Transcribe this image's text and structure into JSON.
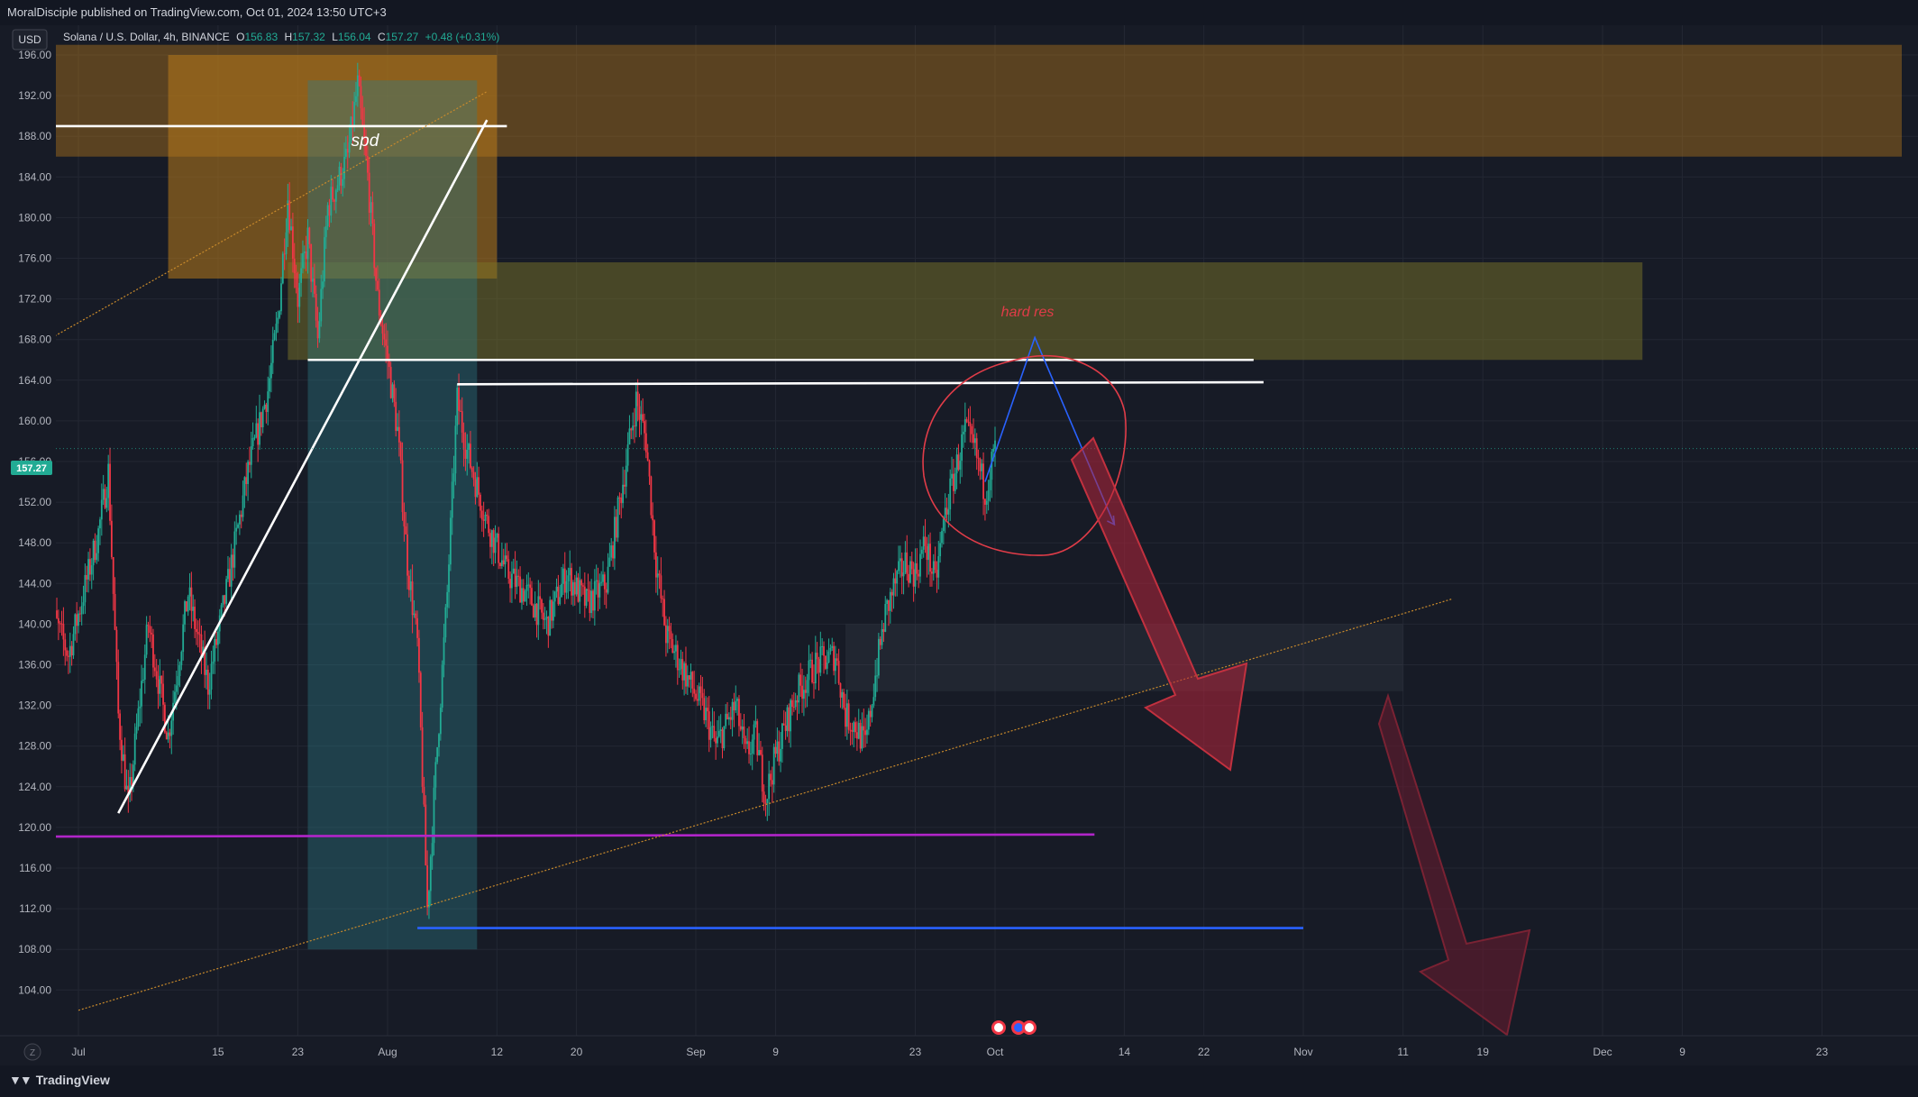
{
  "header": {
    "published": "MoralDisciple published on TradingView.com, Oct 01, 2024 13:50 UTC+3"
  },
  "legend": {
    "currency": "USD",
    "symbol": "Solana / U.S. Dollar, 4h, BINANCE",
    "o_label": "O",
    "o": "156.83",
    "h_label": "H",
    "h": "157.32",
    "l_label": "L",
    "l": "156.04",
    "c_label": "C",
    "c": "157.27",
    "change": "+0.48 (+0.31%)"
  },
  "price_badge": "157.27",
  "footer": {
    "logo_text": "TradingView",
    "z_label": "Z"
  },
  "colors": {
    "background": "#171b26",
    "grid": "#232733",
    "up": "#22ab94",
    "down": "#f23645",
    "badge": "#22ab94",
    "orange_zone": "#b87a1a",
    "olive_zone": "#7a7428",
    "teal_zone": "#2e7f8a",
    "purple_line": "#b125c9",
    "blue_line": "#2962ff",
    "red_arrow": "#c2313f"
  },
  "annotations": [
    {
      "text": "spd"
    },
    {
      "text": "hard res"
    }
  ],
  "chart_data": {
    "type": "candlestick",
    "ylim": [
      102,
      198
    ],
    "y_ticks": [
      "196.00",
      "192.00",
      "188.00",
      "184.00",
      "180.00",
      "176.00",
      "172.00",
      "168.00",
      "164.00",
      "160.00",
      "156.00",
      "152.00",
      "148.00",
      "144.00",
      "140.00",
      "136.00",
      "132.00",
      "128.00",
      "124.00",
      "120.00",
      "116.00",
      "112.00",
      "108.00",
      "104.00"
    ],
    "y_tick_values": [
      196,
      192,
      188,
      184,
      180,
      176,
      172,
      168,
      164,
      160,
      156,
      152,
      148,
      144,
      140,
      136,
      132,
      128,
      124,
      120,
      116,
      112,
      108,
      104
    ],
    "x_ticks": [
      "Jul",
      "15",
      "23",
      "Aug",
      "12",
      "20",
      "Sep",
      "9",
      "23",
      "Oct",
      "14",
      "22",
      "Nov",
      "11",
      "19",
      "Dec",
      "9",
      "23"
    ],
    "x_tick_dates": [
      "2024-07-01",
      "2024-07-15",
      "2024-07-23",
      "2024-08-01",
      "2024-08-12",
      "2024-08-20",
      "2024-09-01",
      "2024-09-09",
      "2024-09-23",
      "2024-10-01",
      "2024-10-14",
      "2024-10-22",
      "2024-11-01",
      "2024-11-11",
      "2024-11-19",
      "2024-12-01",
      "2024-12-09",
      "2024-12-23"
    ],
    "current_price": 157.27,
    "price_path": [
      [
        "2024-06-28",
        142
      ],
      [
        "2024-06-30",
        137
      ],
      [
        "2024-07-03",
        149
      ],
      [
        "2024-07-04",
        155
      ],
      [
        "2024-07-05",
        131
      ],
      [
        "2024-07-06",
        122
      ],
      [
        "2024-07-08",
        140
      ],
      [
        "2024-07-10",
        129
      ],
      [
        "2024-07-12",
        143
      ],
      [
        "2024-07-14",
        134
      ],
      [
        "2024-07-16",
        144
      ],
      [
        "2024-07-18",
        155
      ],
      [
        "2024-07-20",
        163
      ],
      [
        "2024-07-21",
        170
      ],
      [
        "2024-07-22",
        182
      ],
      [
        "2024-07-23",
        172
      ],
      [
        "2024-07-24",
        178
      ],
      [
        "2024-07-25",
        168
      ],
      [
        "2024-07-26",
        181
      ],
      [
        "2024-07-28",
        186
      ],
      [
        "2024-07-29",
        193
      ],
      [
        "2024-07-30",
        184
      ],
      [
        "2024-07-31",
        172
      ],
      [
        "2024-08-01",
        166
      ],
      [
        "2024-08-02",
        159
      ],
      [
        "2024-08-03",
        146
      ],
      [
        "2024-08-04",
        138
      ],
      [
        "2024-08-05",
        112
      ],
      [
        "2024-08-06",
        128
      ],
      [
        "2024-08-07",
        143
      ],
      [
        "2024-08-08",
        162
      ],
      [
        "2024-08-09",
        157
      ],
      [
        "2024-08-11",
        150
      ],
      [
        "2024-08-13",
        145
      ],
      [
        "2024-08-15",
        143
      ],
      [
        "2024-08-17",
        140
      ],
      [
        "2024-08-19",
        145
      ],
      [
        "2024-08-21",
        142
      ],
      [
        "2024-08-23",
        144
      ],
      [
        "2024-08-25",
        156
      ],
      [
        "2024-08-26",
        162
      ],
      [
        "2024-08-27",
        158
      ],
      [
        "2024-08-28",
        146
      ],
      [
        "2024-08-29",
        139
      ],
      [
        "2024-08-31",
        135
      ],
      [
        "2024-09-02",
        131
      ],
      [
        "2024-09-03",
        128
      ],
      [
        "2024-09-05",
        132
      ],
      [
        "2024-09-06",
        127
      ],
      [
        "2024-09-07",
        129
      ],
      [
        "2024-09-08",
        123
      ],
      [
        "2024-09-09",
        127
      ],
      [
        "2024-09-11",
        133
      ],
      [
        "2024-09-13",
        136
      ],
      [
        "2024-09-15",
        137
      ],
      [
        "2024-09-16",
        131
      ],
      [
        "2024-09-17",
        130
      ],
      [
        "2024-09-18",
        128
      ],
      [
        "2024-09-19",
        135
      ],
      [
        "2024-09-20",
        141
      ],
      [
        "2024-09-21",
        144
      ],
      [
        "2024-09-22",
        146
      ],
      [
        "2024-09-23",
        145
      ],
      [
        "2024-09-24",
        148
      ],
      [
        "2024-09-25",
        144
      ],
      [
        "2024-09-26",
        151
      ],
      [
        "2024-09-27",
        155
      ],
      [
        "2024-09-28",
        159
      ],
      [
        "2024-09-29",
        157
      ],
      [
        "2024-09-30",
        153
      ],
      [
        "2024-10-01",
        157.27
      ]
    ],
    "zones": [
      {
        "name": "orange-supply-zone",
        "from": "2024-07-10",
        "to": "2024-08-12",
        "low": 174,
        "high": 196
      },
      {
        "name": "orange-resistance-band",
        "from": "2024-06-28",
        "to": "2024-12-31",
        "low": 186,
        "high": 197
      },
      {
        "name": "olive-resistance-zone",
        "from": "2024-07-22",
        "to": "2024-12-05",
        "low": 166,
        "high": 175.6
      },
      {
        "name": "teal-range-zone",
        "from": "2024-07-24",
        "to": "2024-08-10",
        "low": 108,
        "high": 193.5
      },
      {
        "name": "grey-target-zone",
        "from": "2024-09-16",
        "to": "2024-11-11",
        "low": 133.4,
        "high": 140
      }
    ],
    "lines": [
      {
        "name": "white-line-189",
        "x1": "2024-06-28",
        "y1": 189,
        "x2": "2024-08-13",
        "y2": 189,
        "color": "#ffffff"
      },
      {
        "name": "white-trend-line",
        "x1": "2024-07-05",
        "y1": 121.4,
        "x2": "2024-08-11",
        "y2": 189.6,
        "color": "#ffffff"
      },
      {
        "name": "white-resistance-166",
        "x1": "2024-07-24",
        "y1": 166,
        "x2": "2024-10-27",
        "y2": 166,
        "color": "#ffffff"
      },
      {
        "name": "white-resistance-164",
        "x1": "2024-08-08",
        "y1": 163.6,
        "x2": "2024-10-28",
        "y2": 163.8,
        "color": "#ffffff"
      },
      {
        "name": "purple-support-119",
        "x1": "2024-06-28",
        "y1": 119.1,
        "x2": "2024-10-11",
        "y2": 119.3,
        "color": "#b125c9"
      },
      {
        "name": "blue-support-110",
        "x1": "2024-08-04",
        "y1": 110.1,
        "x2": "2024-11-01",
        "y2": 110.1,
        "color": "#2962ff"
      },
      {
        "name": "orange-dotted-upper",
        "x1": "2024-06-28",
        "y1": 168,
        "x2": "2024-08-11",
        "y2": 192.4,
        "color": "#c98a2b",
        "dashed": true
      },
      {
        "name": "orange-dotted-lower",
        "x1": "2024-07-01",
        "y1": 102,
        "x2": "2024-11-16",
        "y2": 142.5,
        "color": "#c98a2b",
        "dashed": true
      }
    ],
    "projection_path": [
      [
        "2024-09-30",
        154
      ],
      [
        "2024-10-05",
        168.2
      ],
      [
        "2024-10-13",
        149.8
      ]
    ]
  }
}
